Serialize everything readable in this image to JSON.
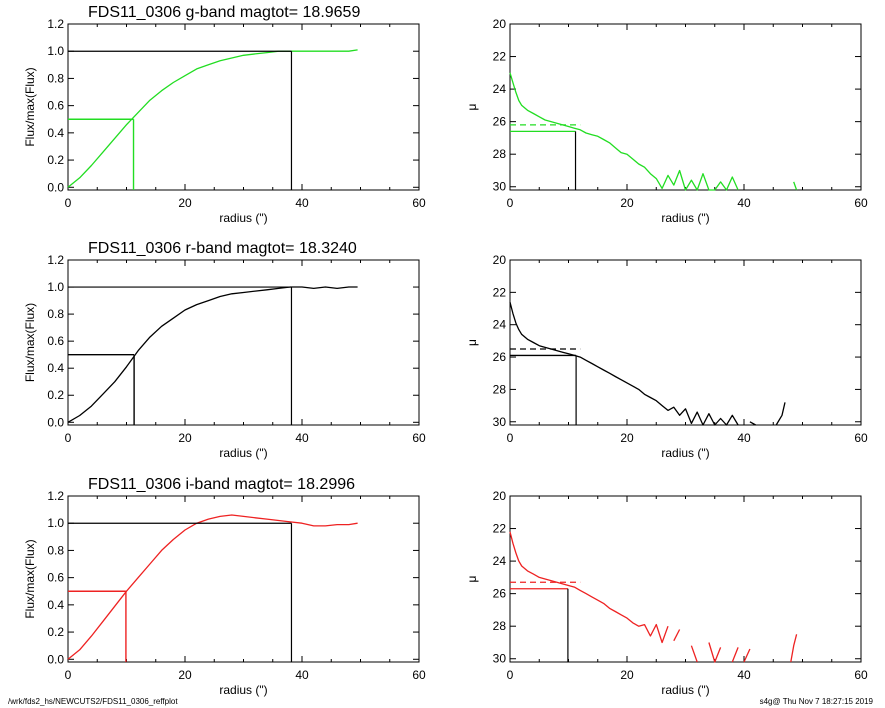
{
  "footer": {
    "left": "/wrk/fds2_hs/NEWCUTS2/FDS11_0306_reffplot",
    "right": "s4g@  Thu Nov  7 18:27:15 2019"
  },
  "chart_data": [
    {
      "type": "line",
      "title": "FDS11_0306 g-band  magtot=     18.9659",
      "xlabel": "radius (\")",
      "ylabel": "Flux/max(Flux)",
      "xlim": [
        0,
        60
      ],
      "ylim": [
        -0.02,
        1.2
      ],
      "xticks": [
        "0",
        "20",
        "40",
        "60"
      ],
      "yticks": [
        "0.0",
        "0.2",
        "0.4",
        "0.6",
        "0.8",
        "1.0",
        "1.2"
      ],
      "color": "#22dd22",
      "series": [
        {
          "x": [
            0,
            2,
            4,
            6,
            8,
            10,
            12,
            14,
            16,
            18,
            20,
            22,
            24,
            26,
            28,
            30,
            32,
            34,
            36,
            38,
            40,
            42,
            44,
            46,
            48,
            49.5
          ],
          "y": [
            0.0,
            0.07,
            0.16,
            0.26,
            0.36,
            0.46,
            0.55,
            0.64,
            0.71,
            0.77,
            0.82,
            0.87,
            0.9,
            0.93,
            0.95,
            0.97,
            0.98,
            0.99,
            1.0,
            1.0,
            1.0,
            1.0,
            1.0,
            1.0,
            1.0,
            1.01
          ]
        }
      ],
      "half_radius": 11.2,
      "total_radius": 38.2
    },
    {
      "type": "line",
      "xlabel": "radius (\")",
      "ylabel": "μ",
      "xlim": [
        0,
        60
      ],
      "ylim": [
        30.2,
        20
      ],
      "xticks": [
        "0",
        "20",
        "40",
        "60"
      ],
      "yticks": [
        "20",
        "22",
        "24",
        "26",
        "28",
        "30"
      ],
      "color": "#22dd22",
      "series": [
        {
          "x": [
            0,
            0.5,
            1,
            1.5,
            2,
            3,
            4,
            5,
            6,
            7,
            8,
            9,
            10,
            11,
            12,
            13,
            14,
            15,
            16,
            17,
            18,
            19,
            20,
            21,
            22,
            23,
            24,
            25,
            26,
            27,
            28,
            29,
            30,
            31,
            32,
            33,
            34,
            35,
            36,
            37,
            38,
            39
          ],
          "y": [
            23.0,
            23.6,
            24.2,
            24.7,
            25.0,
            25.3,
            25.5,
            25.7,
            25.9,
            26.0,
            26.1,
            26.2,
            26.3,
            26.4,
            26.5,
            26.7,
            26.8,
            26.9,
            27.1,
            27.3,
            27.6,
            27.9,
            28.0,
            28.3,
            28.6,
            28.8,
            29.2,
            29.5,
            30.1,
            29.3,
            29.9,
            29.0,
            30.2,
            29.6,
            30.2,
            29.2,
            30.2,
            30.2,
            29.7,
            30.2,
            29.4,
            30.2
          ]
        },
        {
          "x": [
            48.5,
            49
          ],
          "y": [
            29.7,
            30.2
          ]
        }
      ],
      "ref_mu": 26.2,
      "eff_mu": 26.6,
      "half_radius": 11.2
    },
    {
      "type": "line",
      "title": "FDS11_0306 r-band  magtot=     18.3240",
      "xlabel": "radius (\")",
      "ylabel": "Flux/max(Flux)",
      "xlim": [
        0,
        60
      ],
      "ylim": [
        -0.02,
        1.2
      ],
      "xticks": [
        "0",
        "20",
        "40",
        "60"
      ],
      "yticks": [
        "0.0",
        "0.2",
        "0.4",
        "0.6",
        "0.8",
        "1.0",
        "1.2"
      ],
      "color": "#000000",
      "series": [
        {
          "x": [
            0,
            2,
            4,
            6,
            8,
            10,
            12,
            14,
            16,
            18,
            20,
            22,
            24,
            26,
            28,
            30,
            32,
            34,
            36,
            38,
            40,
            42,
            44,
            46,
            48,
            49.5
          ],
          "y": [
            0.0,
            0.05,
            0.12,
            0.21,
            0.3,
            0.41,
            0.53,
            0.63,
            0.71,
            0.77,
            0.83,
            0.87,
            0.9,
            0.93,
            0.95,
            0.96,
            0.97,
            0.98,
            0.99,
            1.0,
            1.0,
            0.99,
            1.0,
            0.99,
            1.0,
            1.0
          ]
        }
      ],
      "half_radius": 11.3,
      "total_radius": 38.2
    },
    {
      "type": "line",
      "xlabel": "radius (\")",
      "ylabel": "μ",
      "xlim": [
        0,
        60
      ],
      "ylim": [
        30.2,
        20
      ],
      "xticks": [
        "0",
        "20",
        "40",
        "60"
      ],
      "yticks": [
        "20",
        "22",
        "24",
        "26",
        "28",
        "30"
      ],
      "color": "#000000",
      "series": [
        {
          "x": [
            0,
            0.5,
            1,
            1.5,
            2,
            3,
            4,
            5,
            6,
            7,
            8,
            9,
            10,
            11,
            12,
            13,
            14,
            15,
            16,
            17,
            18,
            19,
            20,
            21,
            22,
            23,
            24,
            25,
            26,
            27,
            28,
            29,
            30,
            31,
            32,
            33,
            34,
            35,
            36,
            37,
            38,
            39
          ],
          "y": [
            22.6,
            23.3,
            23.9,
            24.3,
            24.6,
            24.9,
            25.1,
            25.3,
            25.4,
            25.5,
            25.6,
            25.7,
            25.8,
            25.9,
            26.0,
            26.2,
            26.4,
            26.6,
            26.8,
            27.0,
            27.2,
            27.4,
            27.6,
            27.8,
            28.0,
            28.3,
            28.5,
            28.7,
            29.0,
            29.3,
            29.1,
            29.6,
            29.2,
            30.1,
            29.4,
            30.2,
            29.5,
            30.2,
            29.8,
            30.2,
            29.6,
            30.2
          ]
        },
        {
          "x": [
            41,
            42
          ],
          "y": [
            30.0,
            30.2
          ]
        },
        {
          "x": [
            45.5,
            46.5,
            47
          ],
          "y": [
            30.2,
            29.6,
            28.8
          ]
        }
      ],
      "ref_mu": 25.5,
      "eff_mu": 25.9,
      "half_radius": 11.3
    },
    {
      "type": "line",
      "title": "FDS11_0306 i-band  magtot=     18.2996",
      "xlabel": "radius (\")",
      "ylabel": "Flux/max(Flux)",
      "xlim": [
        0,
        60
      ],
      "ylim": [
        -0.02,
        1.2
      ],
      "xticks": [
        "0",
        "20",
        "40",
        "60"
      ],
      "yticks": [
        "0.0",
        "0.2",
        "0.4",
        "0.6",
        "0.8",
        "1.0",
        "1.2"
      ],
      "color": "#ee2222",
      "series": [
        {
          "x": [
            0,
            2,
            4,
            6,
            8,
            10,
            12,
            14,
            16,
            18,
            20,
            22,
            24,
            26,
            28,
            30,
            32,
            34,
            36,
            38,
            40,
            42,
            44,
            46,
            48,
            49.5
          ],
          "y": [
            0.0,
            0.07,
            0.17,
            0.28,
            0.39,
            0.5,
            0.6,
            0.7,
            0.8,
            0.88,
            0.95,
            1.0,
            1.03,
            1.05,
            1.06,
            1.05,
            1.04,
            1.03,
            1.02,
            1.01,
            1.0,
            0.98,
            0.98,
            0.99,
            0.99,
            1.0
          ]
        }
      ],
      "half_radius": 9.9,
      "total_radius": 38.2
    },
    {
      "type": "line",
      "xlabel": "radius (\")",
      "ylabel": "μ",
      "xlim": [
        0,
        60
      ],
      "ylim": [
        30.2,
        20
      ],
      "xticks": [
        "0",
        "20",
        "40",
        "60"
      ],
      "yticks": [
        "20",
        "22",
        "24",
        "26",
        "28",
        "30"
      ],
      "color": "#ee2222",
      "series": [
        {
          "x": [
            0,
            0.5,
            1,
            1.5,
            2,
            3,
            4,
            5,
            6,
            7,
            8,
            9,
            10,
            11,
            12,
            13,
            14,
            15,
            16,
            17,
            18,
            19,
            20,
            21,
            22,
            23,
            24,
            25,
            26,
            27
          ],
          "y": [
            22.2,
            22.9,
            23.5,
            24.0,
            24.3,
            24.6,
            24.8,
            25.0,
            25.1,
            25.2,
            25.3,
            25.4,
            25.5,
            25.6,
            25.8,
            26.0,
            26.2,
            26.4,
            26.6,
            26.9,
            27.1,
            27.3,
            27.5,
            27.8,
            28.0,
            27.9,
            28.6,
            27.9,
            29.0,
            28.0
          ]
        },
        {
          "x": [
            28,
            29
          ],
          "y": [
            28.9,
            28.2
          ]
        },
        {
          "x": [
            31,
            32
          ],
          "y": [
            29.2,
            30.2
          ]
        },
        {
          "x": [
            34,
            35,
            36
          ],
          "y": [
            29.0,
            30.2,
            29.3
          ]
        },
        {
          "x": [
            38,
            39
          ],
          "y": [
            30.2,
            29.3
          ]
        },
        {
          "x": [
            40,
            41
          ],
          "y": [
            30.2,
            29.4
          ]
        },
        {
          "x": [
            48,
            48.5,
            49
          ],
          "y": [
            30.2,
            29.2,
            28.5
          ]
        }
      ],
      "ref_mu": 25.3,
      "eff_mu": 25.7,
      "half_radius": 9.9
    }
  ]
}
